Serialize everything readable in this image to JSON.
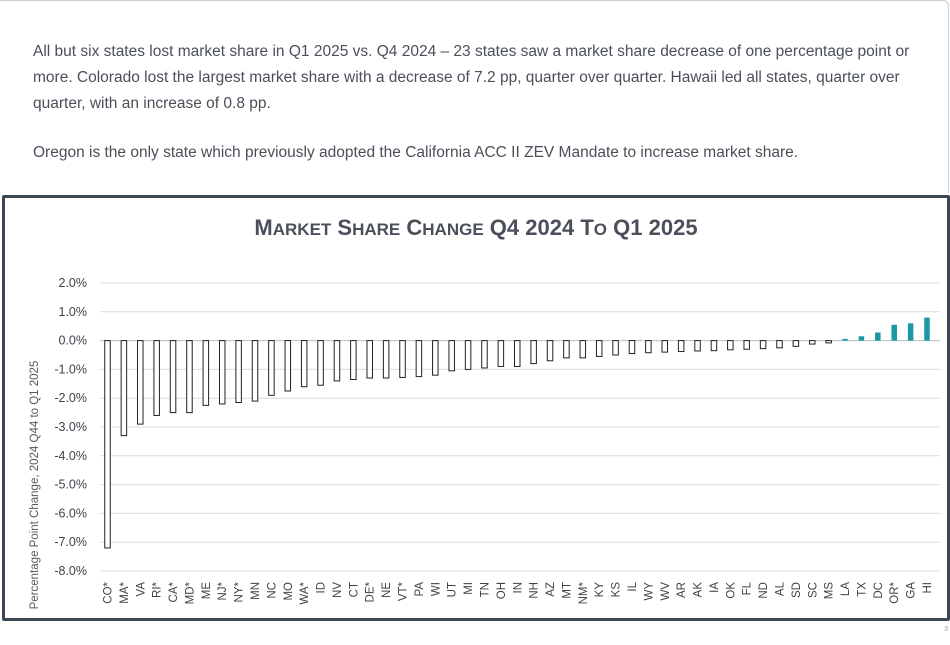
{
  "text": {
    "paragraph1": "All but six states lost market share in Q1 2025 vs. Q4 2024 – 23 states saw a market share decrease of one percentage point or more. Colorado lost the largest market share with a decrease of 7.2 pp, quarter over quarter. Hawaii led all states, quarter over quarter, with an increase of 0.8 pp.",
    "paragraph2": "Oregon is the only state which previously adopted the California ACC II ZEV Mandate to increase market share.",
    "page_number": "3"
  },
  "colors": {
    "negative_bar_fill": "#ffffff",
    "negative_bar_stroke": "#222222",
    "positive_bar": "#1a98a6",
    "gridline": "#d9d9d9",
    "frame": "#3d4756"
  },
  "chart_data": {
    "type": "bar",
    "title": "Market Share Change Q4 2024 to Q1 2025",
    "ylabel": "Percentage Point Change, 2024 Q44 to Q1 2025",
    "xlabel": "",
    "ylim": [
      -8.0,
      2.0
    ],
    "grid": true,
    "yticks": [
      "2.0%",
      "1.0%",
      "0.0%",
      "-1.0%",
      "-2.0%",
      "-3.0%",
      "-4.0%",
      "-5.0%",
      "-6.0%",
      "-7.0%",
      "-8.0%"
    ],
    "ytick_values": [
      2.0,
      1.0,
      0.0,
      -1.0,
      -2.0,
      -3.0,
      -4.0,
      -5.0,
      -6.0,
      -7.0,
      -8.0
    ],
    "categories": [
      "CO*",
      "MA*",
      "VA",
      "RI*",
      "CA*",
      "MD*",
      "ME",
      "NJ*",
      "NY*",
      "MN",
      "NC",
      "MO",
      "WA*",
      "ID",
      "NV",
      "CT",
      "DE*",
      "NE",
      "VT*",
      "PA",
      "WI",
      "UT",
      "MI",
      "TN",
      "OH",
      "IN",
      "NH",
      "AZ",
      "MT",
      "NM*",
      "KY",
      "KS",
      "IL",
      "WY",
      "WV",
      "AR",
      "AK",
      "IA",
      "OK",
      "FL",
      "ND",
      "AL",
      "SD",
      "SC",
      "MS",
      "LA",
      "TX",
      "DC",
      "OR*",
      "GA",
      "HI"
    ],
    "values": [
      -7.2,
      -3.3,
      -2.9,
      -2.6,
      -2.5,
      -2.5,
      -2.25,
      -2.2,
      -2.15,
      -2.1,
      -1.9,
      -1.75,
      -1.6,
      -1.55,
      -1.4,
      -1.35,
      -1.3,
      -1.3,
      -1.28,
      -1.25,
      -1.2,
      -1.05,
      -1.0,
      -0.95,
      -0.9,
      -0.9,
      -0.8,
      -0.7,
      -0.6,
      -0.6,
      -0.55,
      -0.5,
      -0.45,
      -0.42,
      -0.4,
      -0.38,
      -0.36,
      -0.35,
      -0.32,
      -0.3,
      -0.28,
      -0.25,
      -0.2,
      -0.12,
      -0.08,
      0.06,
      0.15,
      0.28,
      0.55,
      0.6,
      0.8
    ]
  }
}
